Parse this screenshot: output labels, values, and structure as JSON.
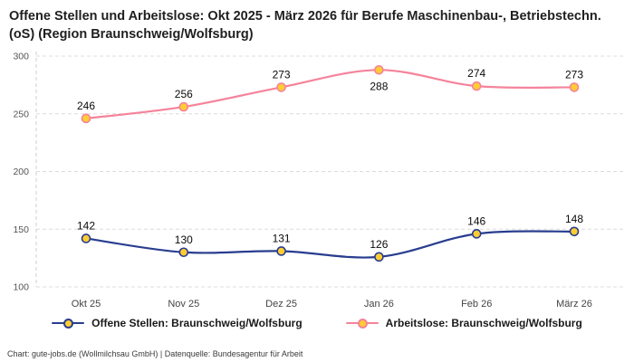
{
  "title": "Offene Stellen und Arbeitslose: Okt 2025 - März 2026 für Berufe Maschinenbau-, Betriebstechn.(oS) (Region Braunschweig/Wolfsburg)",
  "footer": "Chart: gute-jobs.de (Wollmilchsau GmbH) | Datenquelle: Bundesagentur für Arbeit",
  "colors": {
    "offene_stellen": "#283d8f",
    "arbeitslose": "#f5839b",
    "marker_fill": "#ffcd33",
    "grid": "#dcdcdc",
    "axis": "#cfcfcf"
  },
  "chart_data": {
    "type": "line",
    "categories": [
      "Okt 25",
      "Nov 25",
      "Dez 25",
      "Jan 26",
      "Feb 26",
      "März 26"
    ],
    "series": [
      {
        "name": "Offene Stellen: Braunschweig/Wolfsburg",
        "color": "#283d8f",
        "values": [
          142,
          130,
          131,
          126,
          146,
          148
        ],
        "label_positions": [
          "above",
          "above",
          "above",
          "above",
          "above",
          "above"
        ]
      },
      {
        "name": "Arbeitslose: Braunschweig/Wolfsburg",
        "color": "#f5839b",
        "values": [
          246,
          256,
          273,
          288,
          274,
          273
        ],
        "label_positions": [
          "above",
          "above",
          "above",
          "below",
          "above",
          "above"
        ]
      }
    ],
    "y_ticks": [
      100,
      150,
      200,
      250,
      300
    ],
    "ylim": [
      100,
      300
    ],
    "grid": true,
    "grid_style": "dashed",
    "legend_position": "bottom",
    "marker": "circle-yellow"
  },
  "legend": [
    {
      "label": "Offene Stellen: Braunschweig/Wolfsburg",
      "color": "#283d8f"
    },
    {
      "label": "Arbeitslose: Braunschweig/Wolfsburg",
      "color": "#f5839b"
    }
  ]
}
